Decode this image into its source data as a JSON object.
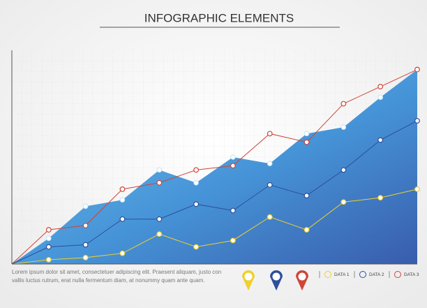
{
  "chart_data": {
    "type": "line",
    "title": "INFOGRAPHIC ELEMENTS",
    "x": [
      0,
      1,
      2,
      3,
      4,
      5,
      6,
      7,
      8,
      9,
      10,
      11
    ],
    "xlim": [
      0,
      11
    ],
    "ylim": [
      0,
      100
    ],
    "area": {
      "color": "#3d8fd6",
      "values": [
        0,
        12,
        27,
        30,
        44,
        38,
        50,
        47,
        61,
        64,
        78,
        91
      ]
    },
    "series": [
      {
        "name": "DATA 1",
        "color": "#f0cf2e",
        "values": [
          0,
          2,
          3,
          5,
          14,
          8,
          11,
          22,
          16,
          29,
          31,
          35
        ]
      },
      {
        "name": "DATA 2",
        "color": "#2d4f9c",
        "values": [
          0,
          8,
          9,
          21,
          21,
          28,
          25,
          37,
          32,
          44,
          58,
          67
        ]
      },
      {
        "name": "DATA 3",
        "color": "#cf4538",
        "values": [
          0,
          16,
          18,
          35,
          38,
          44,
          46,
          61,
          57,
          75,
          83,
          91
        ]
      }
    ],
    "footnote": [
      "Lorem ipsum dolor sit amet,  consectetuer adipiscing elit. Praesent aliquam, justo con",
      "vallis  luctus rutrum, erat  nulla fermentum diam, at nonummy quam ante  quam."
    ]
  }
}
